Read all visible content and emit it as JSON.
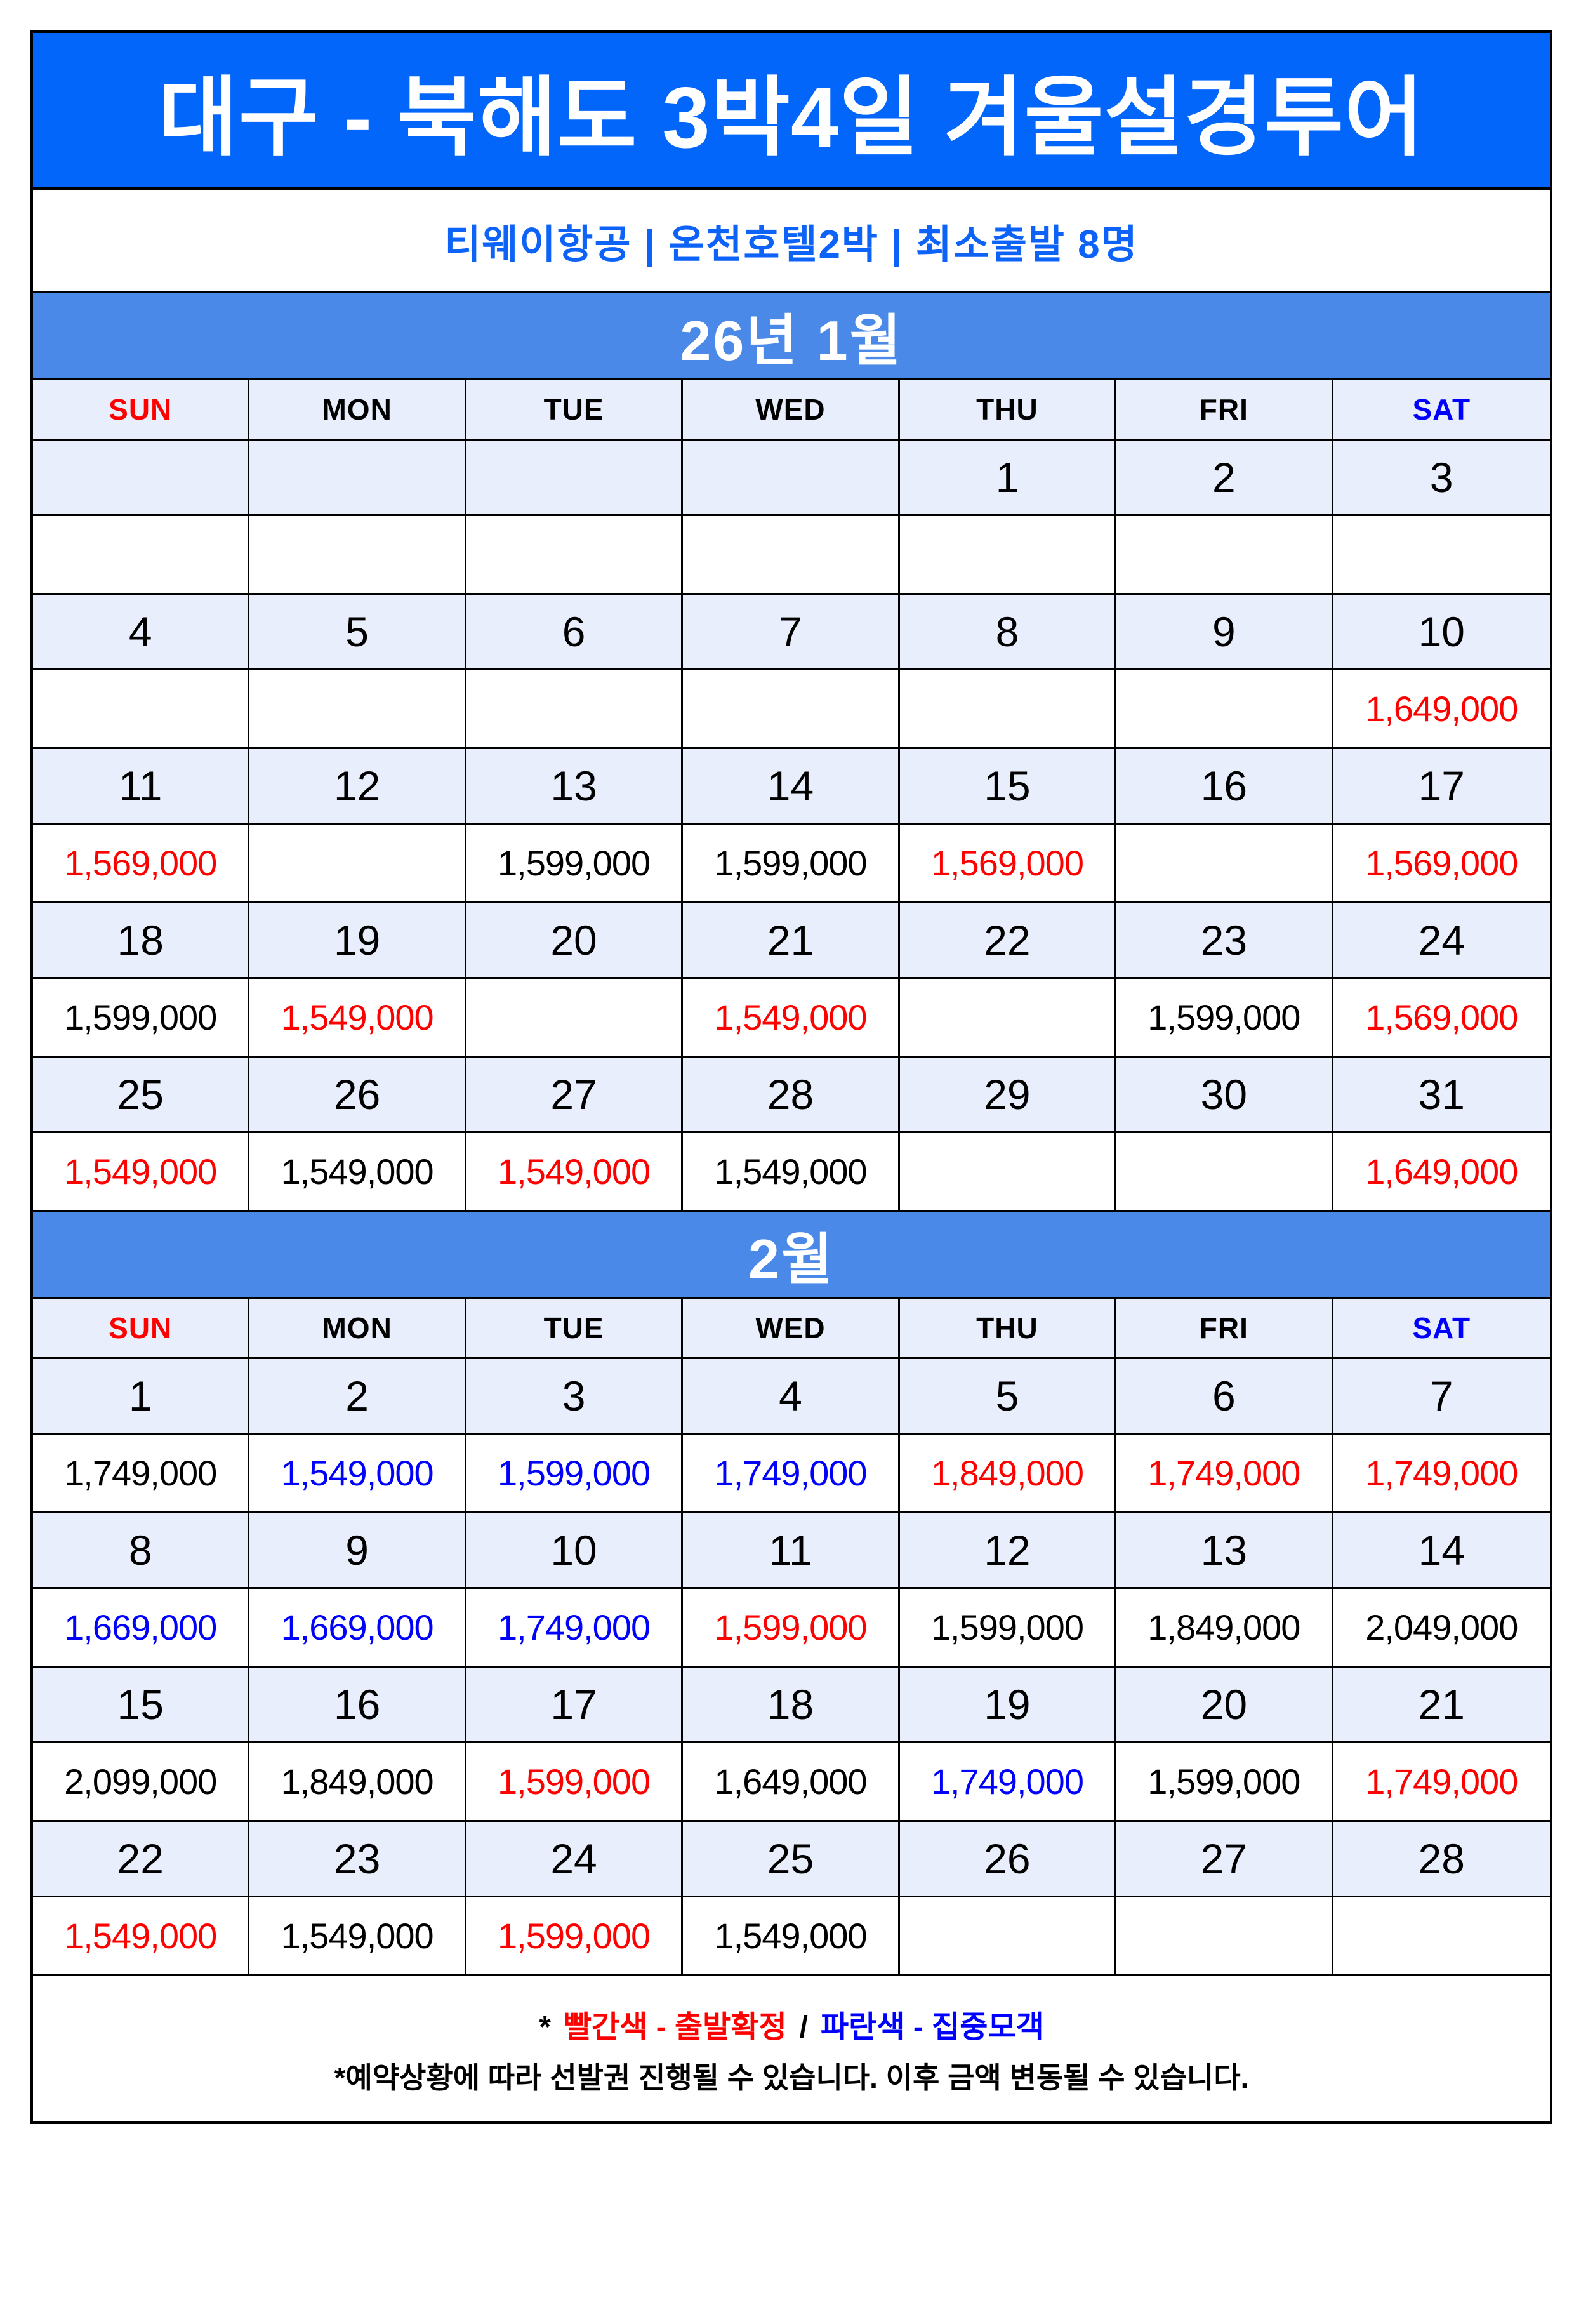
{
  "colors": {
    "title_bg": "#0366FB",
    "month_band_bg": "#4A89E8",
    "light_row_bg": "#E8EEFB",
    "confirmed_red": "#FF0000",
    "recruiting_blue": "#0000FF",
    "subtitle_blue": "#0D63F8"
  },
  "header": {
    "title": "대구 - 북해도 3박4일 겨울설경투어",
    "subtitle": "티웨이항공   |   온천호텔2박   |   최소출발 8명"
  },
  "dow": [
    {
      "label": "SUN",
      "color": "red"
    },
    {
      "label": "MON",
      "color": "black"
    },
    {
      "label": "TUE",
      "color": "black"
    },
    {
      "label": "WED",
      "color": "black"
    },
    {
      "label": "THU",
      "color": "black"
    },
    {
      "label": "FRI",
      "color": "black"
    },
    {
      "label": "SAT",
      "color": "blue"
    }
  ],
  "months": [
    {
      "title": "26년 1월",
      "weeks": [
        {
          "cells": [
            {
              "d": "",
              "p": "",
              "c": ""
            },
            {
              "d": "",
              "p": "",
              "c": ""
            },
            {
              "d": "",
              "p": "",
              "c": ""
            },
            {
              "d": "",
              "p": "",
              "c": ""
            },
            {
              "d": "1",
              "p": "",
              "c": ""
            },
            {
              "d": "2",
              "p": "",
              "c": ""
            },
            {
              "d": "3",
              "p": "",
              "c": ""
            }
          ]
        },
        {
          "cells": [
            {
              "d": "4",
              "p": "",
              "c": ""
            },
            {
              "d": "5",
              "p": "",
              "c": ""
            },
            {
              "d": "6",
              "p": "",
              "c": ""
            },
            {
              "d": "7",
              "p": "",
              "c": ""
            },
            {
              "d": "8",
              "p": "",
              "c": ""
            },
            {
              "d": "9",
              "p": "",
              "c": ""
            },
            {
              "d": "10",
              "p": "1,649,000",
              "c": "red"
            }
          ]
        },
        {
          "cells": [
            {
              "d": "11",
              "p": "1,569,000",
              "c": "red"
            },
            {
              "d": "12",
              "p": "",
              "c": ""
            },
            {
              "d": "13",
              "p": "1,599,000",
              "c": "black"
            },
            {
              "d": "14",
              "p": "1,599,000",
              "c": "black"
            },
            {
              "d": "15",
              "p": "1,569,000",
              "c": "red"
            },
            {
              "d": "16",
              "p": "",
              "c": ""
            },
            {
              "d": "17",
              "p": "1,569,000",
              "c": "red"
            }
          ]
        },
        {
          "cells": [
            {
              "d": "18",
              "p": "1,599,000",
              "c": "black"
            },
            {
              "d": "19",
              "p": "1,549,000",
              "c": "red"
            },
            {
              "d": "20",
              "p": "",
              "c": ""
            },
            {
              "d": "21",
              "p": "1,549,000",
              "c": "red"
            },
            {
              "d": "22",
              "p": "",
              "c": ""
            },
            {
              "d": "23",
              "p": "1,599,000",
              "c": "black"
            },
            {
              "d": "24",
              "p": "1,569,000",
              "c": "red"
            }
          ]
        },
        {
          "cells": [
            {
              "d": "25",
              "p": "1,549,000",
              "c": "red"
            },
            {
              "d": "26",
              "p": "1,549,000",
              "c": "black"
            },
            {
              "d": "27",
              "p": "1,549,000",
              "c": "red"
            },
            {
              "d": "28",
              "p": "1,549,000",
              "c": "black"
            },
            {
              "d": "29",
              "p": "",
              "c": ""
            },
            {
              "d": "30",
              "p": "",
              "c": ""
            },
            {
              "d": "31",
              "p": "1,649,000",
              "c": "red"
            }
          ]
        }
      ]
    },
    {
      "title": "2월",
      "weeks": [
        {
          "cells": [
            {
              "d": "1",
              "p": "1,749,000",
              "c": "black"
            },
            {
              "d": "2",
              "p": "1,549,000",
              "c": "blue"
            },
            {
              "d": "3",
              "p": "1,599,000",
              "c": "blue"
            },
            {
              "d": "4",
              "p": "1,749,000",
              "c": "blue"
            },
            {
              "d": "5",
              "p": "1,849,000",
              "c": "red"
            },
            {
              "d": "6",
              "p": "1,749,000",
              "c": "red"
            },
            {
              "d": "7",
              "p": "1,749,000",
              "c": "red"
            }
          ]
        },
        {
          "cells": [
            {
              "d": "8",
              "p": "1,669,000",
              "c": "blue"
            },
            {
              "d": "9",
              "p": "1,669,000",
              "c": "blue"
            },
            {
              "d": "10",
              "p": "1,749,000",
              "c": "blue"
            },
            {
              "d": "11",
              "p": "1,599,000",
              "c": "red"
            },
            {
              "d": "12",
              "p": "1,599,000",
              "c": "black"
            },
            {
              "d": "13",
              "p": "1,849,000",
              "c": "black"
            },
            {
              "d": "14",
              "p": "2,049,000",
              "c": "black"
            }
          ]
        },
        {
          "cells": [
            {
              "d": "15",
              "p": "2,099,000",
              "c": "black"
            },
            {
              "d": "16",
              "p": "1,849,000",
              "c": "black"
            },
            {
              "d": "17",
              "p": "1,599,000",
              "c": "red"
            },
            {
              "d": "18",
              "p": "1,649,000",
              "c": "black"
            },
            {
              "d": "19",
              "p": "1,749,000",
              "c": "blue"
            },
            {
              "d": "20",
              "p": "1,599,000",
              "c": "black"
            },
            {
              "d": "21",
              "p": "1,749,000",
              "c": "red"
            }
          ]
        },
        {
          "cells": [
            {
              "d": "22",
              "p": "1,549,000",
              "c": "red"
            },
            {
              "d": "23",
              "p": "1,549,000",
              "c": "black"
            },
            {
              "d": "24",
              "p": "1,599,000",
              "c": "red"
            },
            {
              "d": "25",
              "p": "1,549,000",
              "c": "black"
            },
            {
              "d": "26",
              "p": "",
              "c": ""
            },
            {
              "d": "27",
              "p": "",
              "c": ""
            },
            {
              "d": "28",
              "p": "",
              "c": ""
            }
          ]
        }
      ]
    }
  ],
  "footer": {
    "star": "*",
    "legend_red": "빨간색 - 출발확정",
    "slash": "/",
    "legend_blue": "파란색 - 집중모객",
    "note": "*예약상황에 따라 선발권 진행될 수 있습니다. 이후 금액 변동될 수 있습니다."
  }
}
